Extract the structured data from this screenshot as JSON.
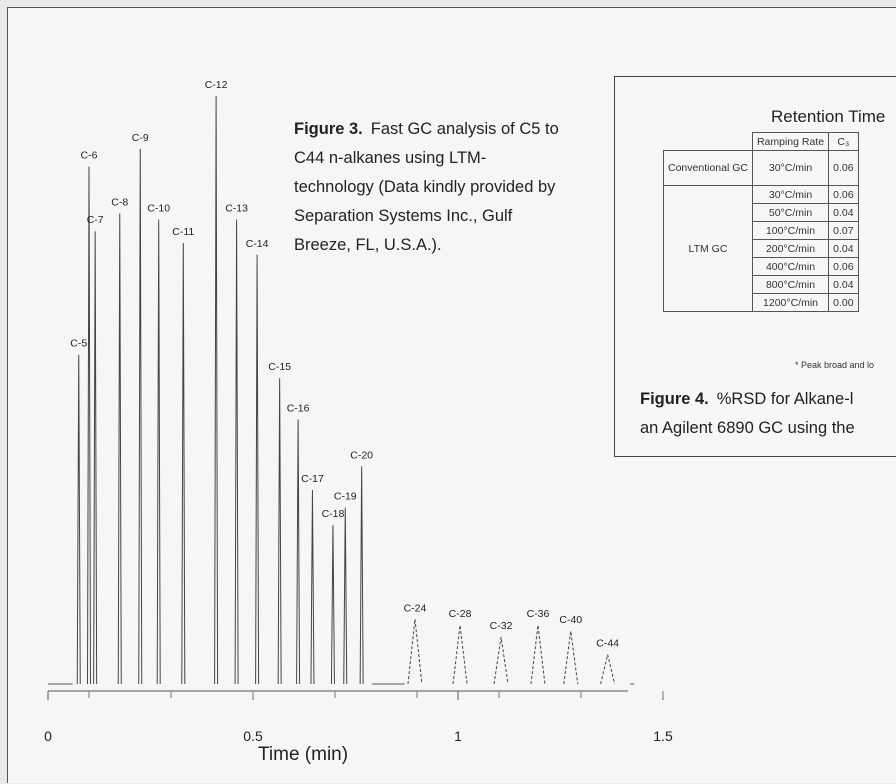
{
  "chart_data": {
    "type": "line",
    "xlabel": "Time (min)",
    "xlim": [
      0,
      1.5
    ],
    "x_ticks": [
      "0",
      "0.5",
      "1",
      "1.5"
    ],
    "peaks": [
      {
        "label": "C-5",
        "x": 0.075,
        "height": 0.56
      },
      {
        "label": "C-6",
        "x": 0.1,
        "height": 0.88
      },
      {
        "label": "C-7",
        "x": 0.115,
        "height": 0.77
      },
      {
        "label": "C-8",
        "x": 0.175,
        "height": 0.8
      },
      {
        "label": "C-9",
        "x": 0.225,
        "height": 0.91
      },
      {
        "label": "C-10",
        "x": 0.27,
        "height": 0.79
      },
      {
        "label": "C-11",
        "x": 0.33,
        "height": 0.75
      },
      {
        "label": "C-12",
        "x": 0.41,
        "height": 1.0
      },
      {
        "label": "C-13",
        "x": 0.46,
        "height": 0.79
      },
      {
        "label": "C-14",
        "x": 0.51,
        "height": 0.73
      },
      {
        "label": "C-15",
        "x": 0.565,
        "height": 0.52
      },
      {
        "label": "C-16",
        "x": 0.61,
        "height": 0.45
      },
      {
        "label": "C-17",
        "x": 0.645,
        "height": 0.33
      },
      {
        "label": "C-18",
        "x": 0.695,
        "height": 0.27
      },
      {
        "label": "C-19",
        "x": 0.725,
        "height": 0.3
      },
      {
        "label": "C-20",
        "x": 0.765,
        "height": 0.37
      },
      {
        "label": "C-24",
        "x": 0.895,
        "height": 0.11
      },
      {
        "label": "C-28",
        "x": 1.005,
        "height": 0.1
      },
      {
        "label": "C-32",
        "x": 1.105,
        "height": 0.08
      },
      {
        "label": "C-36",
        "x": 1.195,
        "height": 0.1
      },
      {
        "label": "C-40",
        "x": 1.275,
        "height": 0.09
      },
      {
        "label": "C-44",
        "x": 1.365,
        "height": 0.05
      }
    ]
  },
  "figure3": {
    "title": "Figure 3.",
    "text": "Fast GC analysis of C5 to C44 n-alkanes using LTM-technology (Data kindly provided by Separation Systems Inc., Gulf Breeze, FL, U.S.A.)."
  },
  "figure4": {
    "title": "Figure 4.",
    "line1": "%RSD for Alkane-l",
    "line2": "an Agilent 6890 GC using the"
  },
  "retention_table": {
    "title": "Retention Time",
    "headers": [
      "Ramping Rate",
      "C₃"
    ],
    "conventional_label": "Conventional GC",
    "conventional_row": [
      "30°C/min",
      "0.06"
    ],
    "ltm_label": "LTM GC",
    "ltm_rows": [
      [
        "30°C/min",
        "0.06"
      ],
      [
        "50°C/min",
        "0.04"
      ],
      [
        "100°C/min",
        "0.07"
      ],
      [
        "200°C/min",
        "0.04"
      ],
      [
        "400°C/min",
        "0.06"
      ],
      [
        "800°C/min",
        "0.04"
      ],
      [
        "1200°C/min",
        "0.00"
      ]
    ],
    "footnote": "* Peak broad and lo"
  }
}
